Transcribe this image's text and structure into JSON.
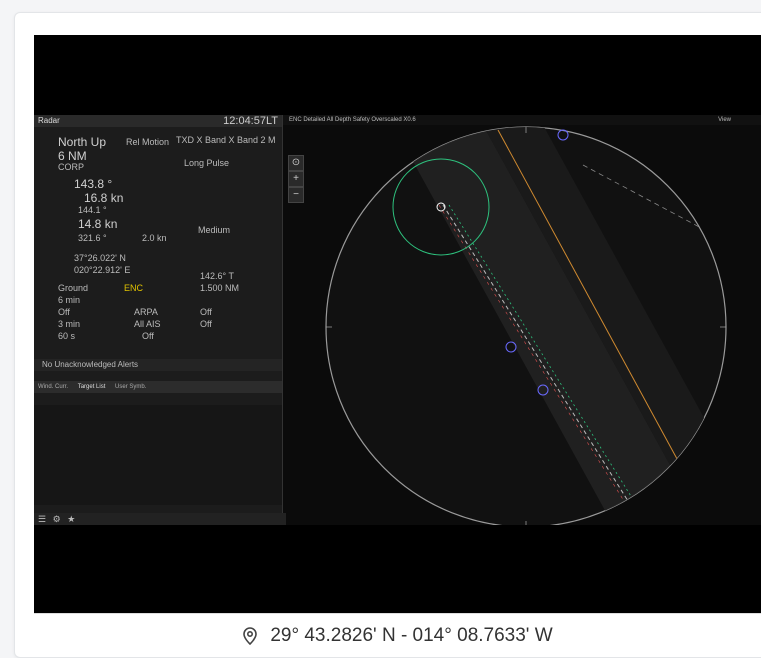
{
  "footer": {
    "coordinates": "29° 43.2826' N - 014° 08.7633' W",
    "icon": "location-pin-icon"
  },
  "radar": {
    "title": "Radar",
    "clock": "12:04:57LT",
    "orientation": "North Up",
    "range": "6 NM",
    "motion": "Rel Motion",
    "mode": "CORP",
    "band": "TXD X Band X Band 2 M",
    "pulse": "Long Pulse",
    "hdg_value": "143.8 °",
    "spd_value": "16.8 kn",
    "cog_value": "144.1 °",
    "sog_value": "14.8 kn",
    "set_value": "321.6 °",
    "drift_value": "2.0 kn",
    "lat": "37°26.022' N",
    "lon": "020°22.912' E",
    "ground": "Ground",
    "enc": "ENC",
    "trails": "6 min",
    "off1": "Off",
    "vector": "3 min",
    "ais": "ARPA",
    "allais": "All AIS",
    "sixty": "60 s",
    "off2": "Off",
    "medium": "Medium",
    "ebl": "142.6° T",
    "vrm": "1.500 NM",
    "off3": "Off",
    "off4": "Off",
    "alerts": "No Unacknowledged Alerts",
    "tab1": "Wind. Curr.",
    "tab2": "Target List",
    "tab3": "User Symb.",
    "topbar": "ENC  Detailed All  Depth  Safety  Overscaled X0.6",
    "view_label": "View"
  }
}
